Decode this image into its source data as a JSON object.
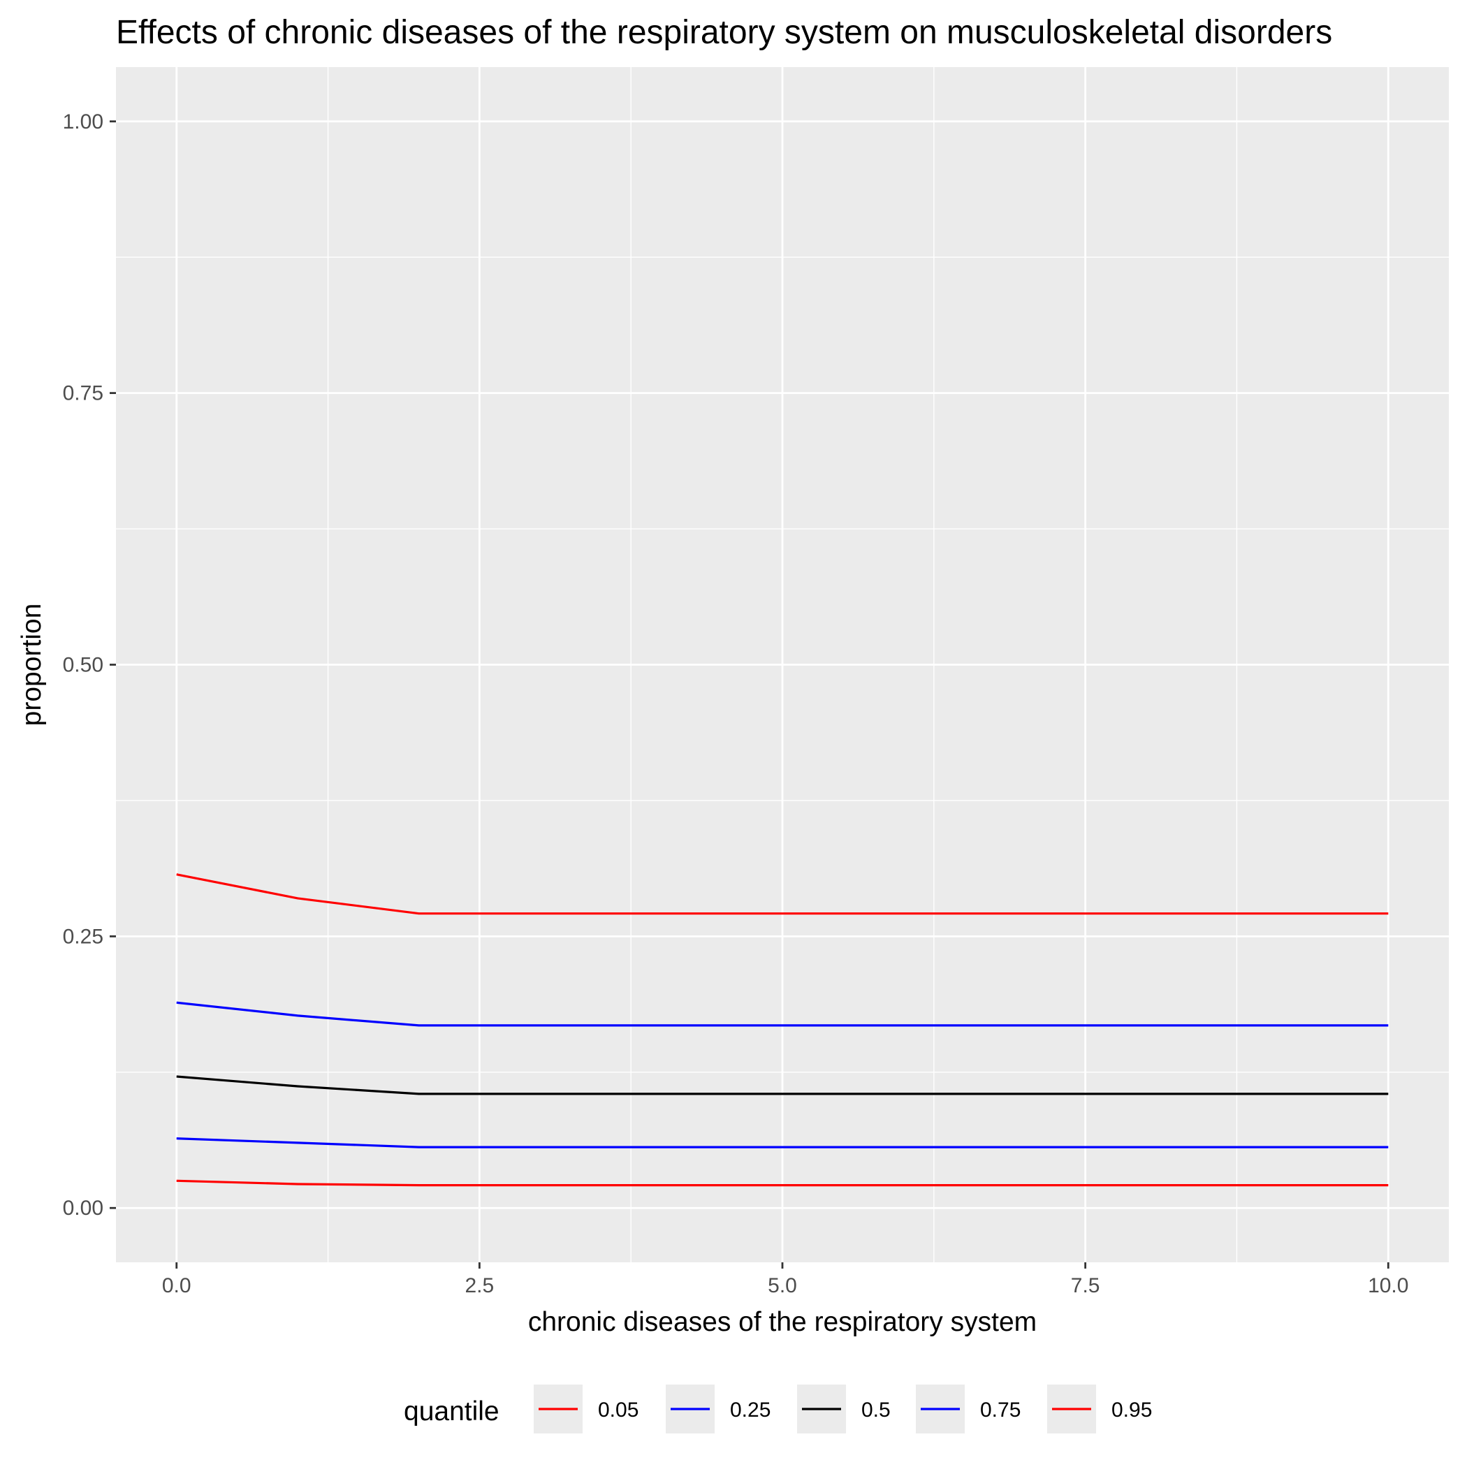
{
  "chart_data": {
    "type": "line",
    "title": "Effects of chronic diseases of the respiratory system on musculoskeletal disorders",
    "xlabel": "chronic diseases of the respiratory system",
    "ylabel": "proportion",
    "xlim": [
      -0.5,
      10.5
    ],
    "ylim": [
      -0.05,
      1.05
    ],
    "x_ticks": [
      0,
      2.5,
      5,
      7.5,
      10
    ],
    "x_tick_labels": [
      "0.0",
      "2.5",
      "5.0",
      "7.5",
      "10.0"
    ],
    "y_ticks": [
      0,
      0.25,
      0.5,
      0.75,
      1
    ],
    "y_tick_labels": [
      "0.00",
      "0.25",
      "0.50",
      "0.75",
      "1.00"
    ],
    "grid": true,
    "background": "#EBEBEB",
    "legend": {
      "title": "quantile",
      "position": "bottom",
      "entries": [
        "0.05",
        "0.25",
        "0.5",
        "0.75",
        "0.95"
      ]
    },
    "x": [
      0,
      1,
      2,
      3,
      4,
      5,
      6,
      7,
      8,
      9,
      10
    ],
    "series": [
      {
        "name": "0.05",
        "color": "#FF0000",
        "values": [
          0.025,
          0.022,
          0.021,
          0.021,
          0.021,
          0.021,
          0.021,
          0.021,
          0.021,
          0.021,
          0.021
        ]
      },
      {
        "name": "0.25",
        "color": "#0000FF",
        "values": [
          0.064,
          0.06,
          0.056,
          0.056,
          0.056,
          0.056,
          0.056,
          0.056,
          0.056,
          0.056,
          0.056
        ]
      },
      {
        "name": "0.5",
        "color": "#000000",
        "values": [
          0.121,
          0.112,
          0.105,
          0.105,
          0.105,
          0.105,
          0.105,
          0.105,
          0.105,
          0.105,
          0.105
        ]
      },
      {
        "name": "0.75",
        "color": "#0000FF",
        "values": [
          0.189,
          0.177,
          0.168,
          0.168,
          0.168,
          0.168,
          0.168,
          0.168,
          0.168,
          0.168,
          0.168
        ]
      },
      {
        "name": "0.95",
        "color": "#FF0000",
        "values": [
          0.307,
          0.285,
          0.271,
          0.271,
          0.271,
          0.271,
          0.271,
          0.271,
          0.271,
          0.271,
          0.271
        ]
      }
    ]
  }
}
